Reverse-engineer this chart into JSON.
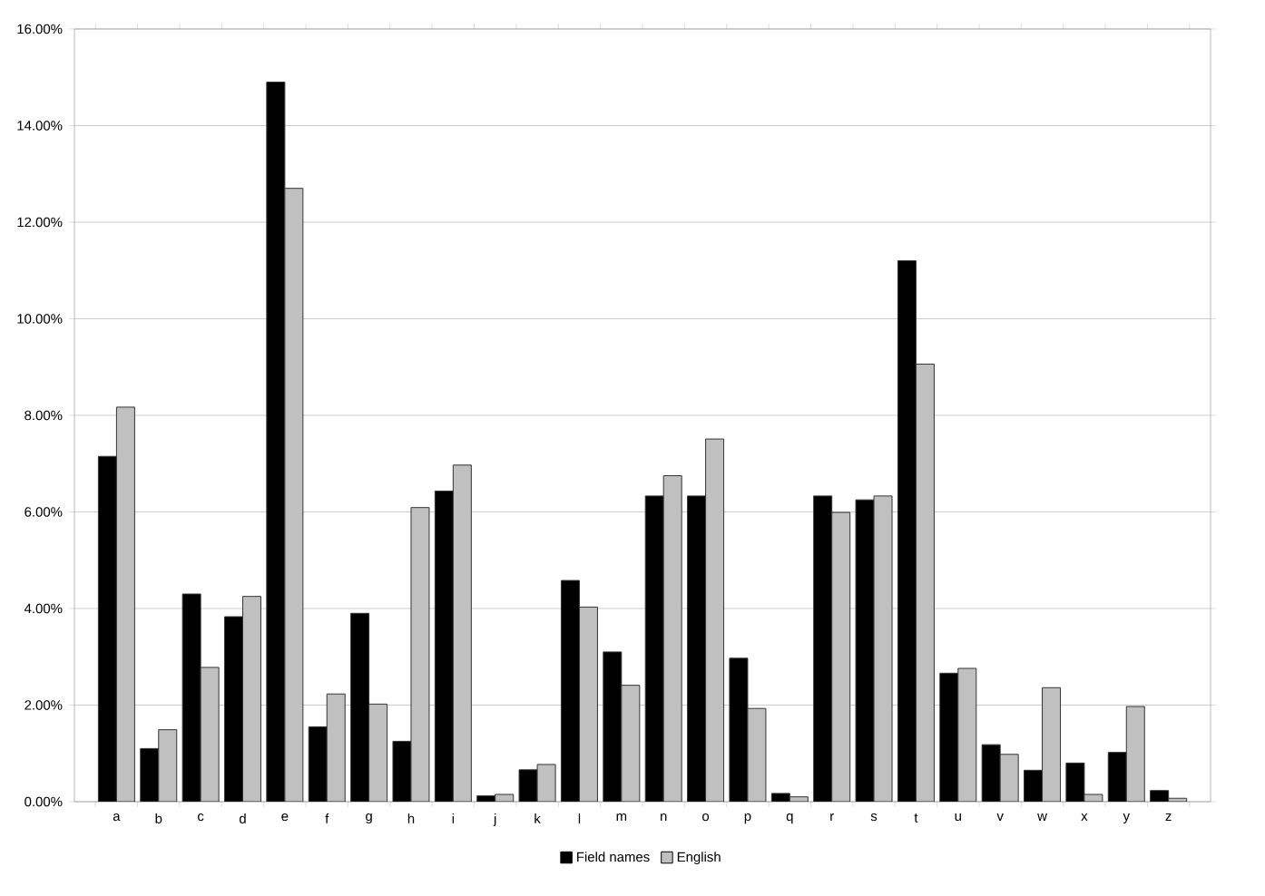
{
  "chart_data": {
    "type": "bar",
    "categories": [
      "a",
      "b",
      "c",
      "d",
      "e",
      "f",
      "g",
      "h",
      "i",
      "j",
      "k",
      "l",
      "m",
      "n",
      "o",
      "p",
      "q",
      "r",
      "s",
      "t",
      "u",
      "v",
      "w",
      "x",
      "y",
      "z"
    ],
    "series": [
      {
        "name": "Field names",
        "color": "#000000",
        "values": [
          7.15,
          1.1,
          4.3,
          3.83,
          14.9,
          1.55,
          3.9,
          1.25,
          6.43,
          0.12,
          0.66,
          4.58,
          3.1,
          6.33,
          6.33,
          2.97,
          0.17,
          6.33,
          6.25,
          11.2,
          2.66,
          1.18,
          0.65,
          0.8,
          1.02,
          0.23
        ]
      },
      {
        "name": "English",
        "color": "#c0c0c0",
        "values": [
          8.17,
          1.49,
          2.78,
          4.25,
          12.7,
          2.23,
          2.02,
          6.09,
          6.97,
          0.15,
          0.77,
          4.03,
          2.41,
          6.75,
          7.51,
          1.93,
          0.1,
          5.99,
          6.33,
          9.06,
          2.76,
          0.98,
          2.36,
          0.15,
          1.97,
          0.07
        ]
      }
    ],
    "ylim": [
      0,
      16
    ],
    "yticks": [
      {
        "value": 0,
        "label": "0.00%"
      },
      {
        "value": 2,
        "label": "2.00%"
      },
      {
        "value": 4,
        "label": "4.00%"
      },
      {
        "value": 6,
        "label": "6.00%"
      },
      {
        "value": 8,
        "label": "8.00%"
      },
      {
        "value": 10,
        "label": "10.00%"
      },
      {
        "value": 12,
        "label": "12.00%"
      },
      {
        "value": 14,
        "label": "14.00%"
      },
      {
        "value": 16,
        "label": "16.00%"
      }
    ],
    "grid": "y",
    "legend": "bottom"
  }
}
